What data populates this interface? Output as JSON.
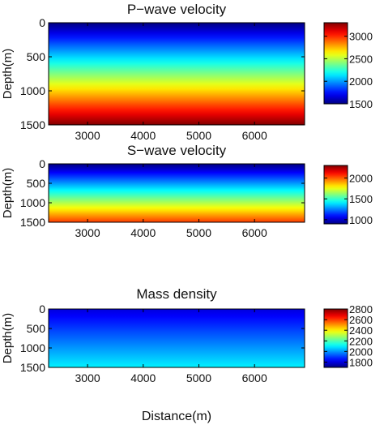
{
  "xlabel": "Distance(m)",
  "chart_data": [
    {
      "type": "heatmap",
      "title": "P−wave velocity",
      "xlabel": "",
      "ylabel": "Depth(m)",
      "xlim": [
        2300,
        6900
      ],
      "ylim": [
        0,
        1500
      ],
      "y_inverted": true,
      "xticks": [
        3000,
        4000,
        5000,
        6000
      ],
      "yticks": [
        0,
        500,
        1000,
        1500
      ],
      "colorbar": {
        "min": 1500,
        "max": 3300,
        "ticks": [
          1500,
          2000,
          2500,
          3000
        ],
        "colormap": "jet"
      },
      "profile": {
        "depth": [
          0,
          1500
        ],
        "value": [
          1500,
          3300
        ],
        "variation": "linear in depth, uniform in distance"
      }
    },
    {
      "type": "heatmap",
      "title": "S−wave velocity",
      "xlabel": "",
      "ylabel": "Depth(m)",
      "xlim": [
        2300,
        6900
      ],
      "ylim": [
        0,
        1500
      ],
      "y_inverted": true,
      "xticks": [
        3000,
        4000,
        5000,
        6000
      ],
      "yticks": [
        0,
        500,
        1000,
        1500
      ],
      "colorbar": {
        "min": 900,
        "max": 2300,
        "ticks": [
          1000,
          1500,
          2000
        ],
        "colormap": "jet"
      },
      "profile": {
        "depth": [
          0,
          1500
        ],
        "value": [
          900,
          2050
        ],
        "variation": "linear in depth, uniform in distance"
      }
    },
    {
      "type": "heatmap",
      "title": "Mass density",
      "xlabel": "Distance(m)",
      "ylabel": "Depth(m)",
      "xlim": [
        2300,
        6900
      ],
      "ylim": [
        0,
        1500
      ],
      "y_inverted": true,
      "xticks": [
        3000,
        4000,
        5000,
        6000
      ],
      "yticks": [
        0,
        500,
        1000,
        1500
      ],
      "colorbar": {
        "min": 1700,
        "max": 2800,
        "ticks": [
          1800,
          2000,
          2200,
          2400,
          2600,
          2800
        ],
        "colormap": "jet"
      },
      "profile": {
        "depth": [
          0,
          1500
        ],
        "value": [
          1800,
          2100
        ],
        "variation": "linear in depth, uniform in distance"
      }
    }
  ]
}
